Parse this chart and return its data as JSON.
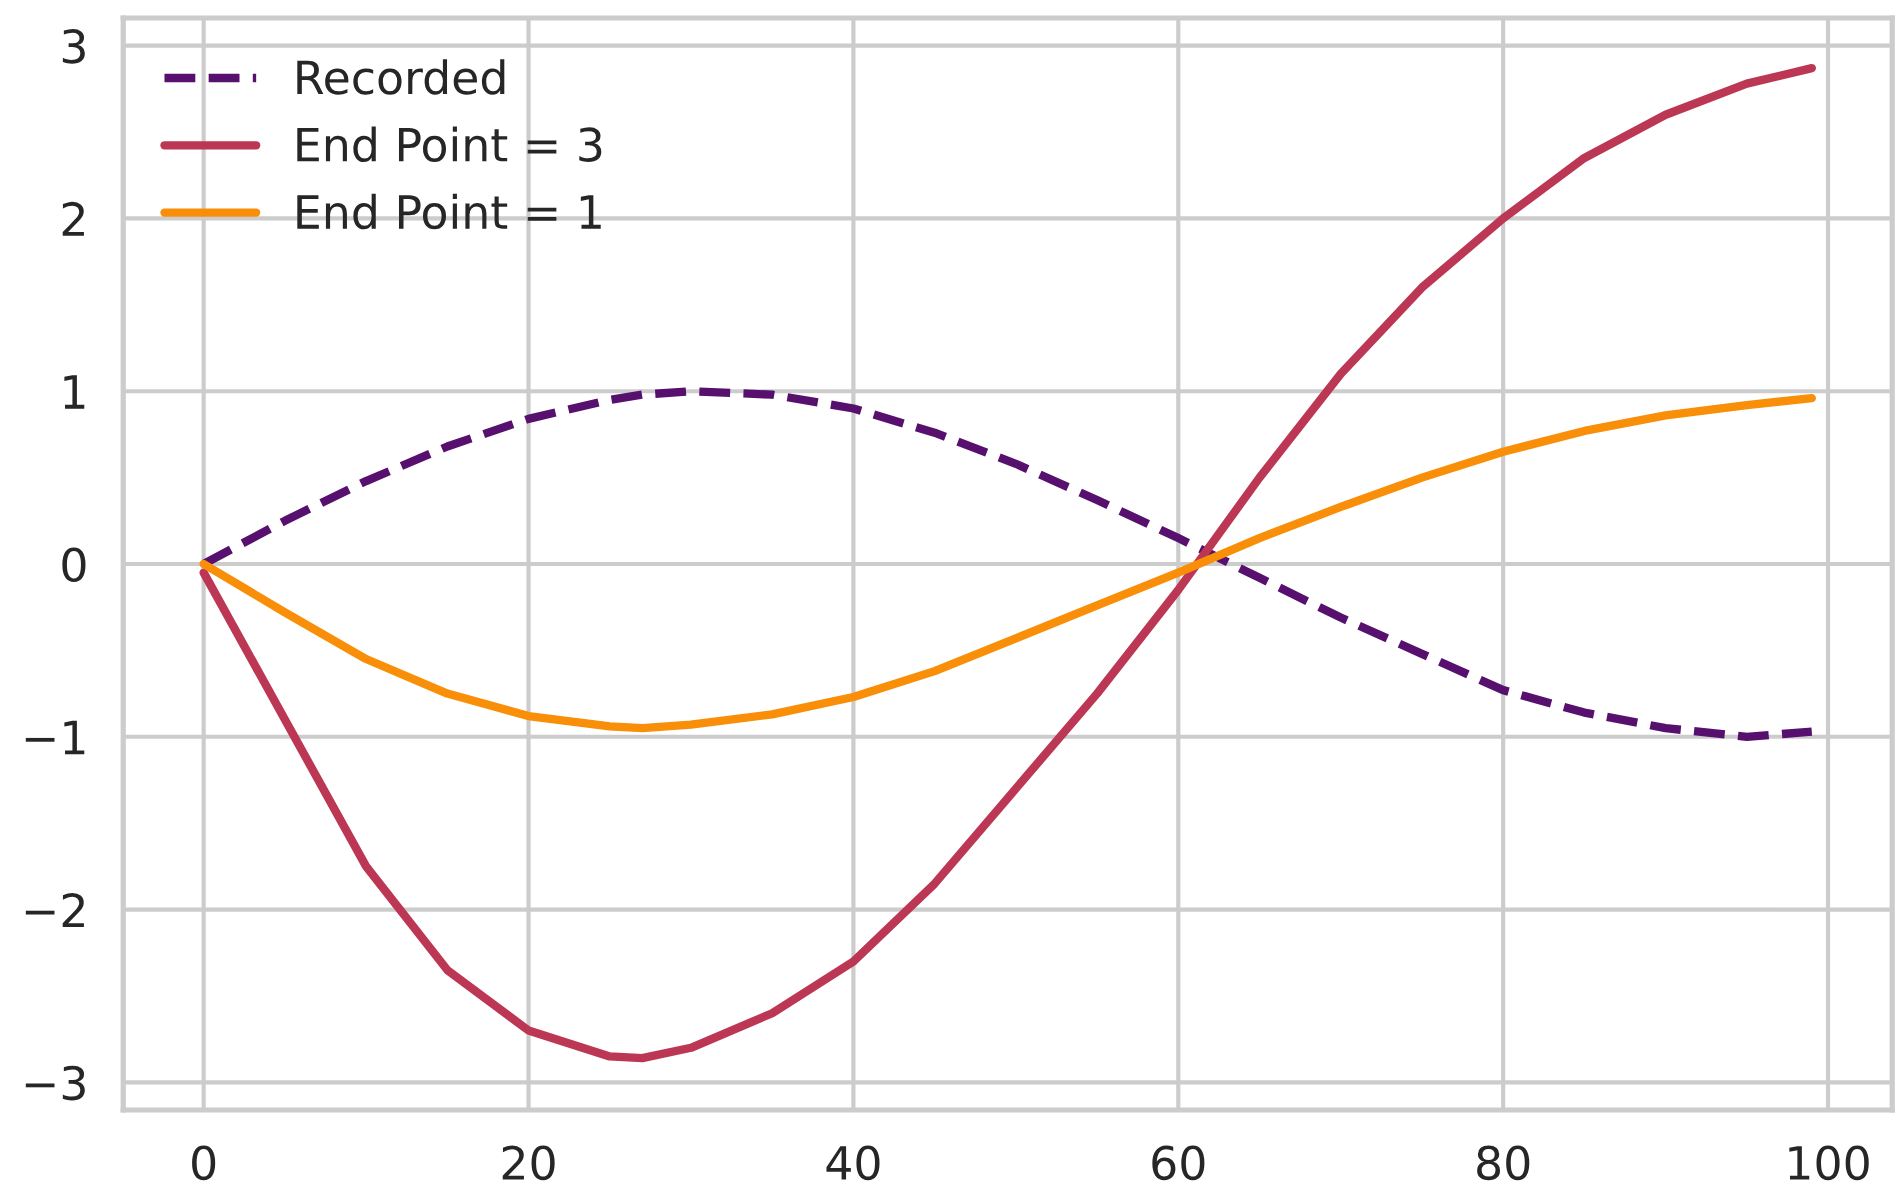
{
  "chart_data": {
    "type": "line",
    "x": [
      0,
      5,
      10,
      15,
      20,
      25,
      27,
      30,
      35,
      40,
      45,
      50,
      55,
      60,
      65,
      70,
      75,
      80,
      85,
      90,
      95,
      99
    ],
    "series": [
      {
        "name": "Recorded",
        "color": "#57106e",
        "line_style": "dashed",
        "values": [
          0,
          0.25,
          0.48,
          0.68,
          0.84,
          0.95,
          0.98,
          1.0,
          0.98,
          0.9,
          0.76,
          0.58,
          0.37,
          0.15,
          -0.08,
          -0.31,
          -0.52,
          -0.73,
          -0.86,
          -0.95,
          -1.0,
          -0.97
        ]
      },
      {
        "name": "End Point = 3",
        "color": "#bc3754",
        "line_style": "solid",
        "values": [
          -0.05,
          -0.9,
          -1.75,
          -2.35,
          -2.7,
          -2.85,
          -2.86,
          -2.8,
          -2.6,
          -2.3,
          -1.85,
          -1.3,
          -0.75,
          -0.15,
          0.5,
          1.1,
          1.6,
          2.0,
          2.35,
          2.6,
          2.78,
          2.87
        ]
      },
      {
        "name": "End Point = 1",
        "color": "#f98e09",
        "line_style": "solid",
        "values": [
          0,
          -0.28,
          -0.55,
          -0.75,
          -0.88,
          -0.94,
          -0.95,
          -0.93,
          -0.87,
          -0.77,
          -0.62,
          -0.43,
          -0.24,
          -0.05,
          0.15,
          0.33,
          0.5,
          0.65,
          0.77,
          0.86,
          0.92,
          0.96
        ]
      }
    ],
    "xlim": [
      -4.95,
      103.95
    ],
    "ylim": [
      -3.16,
      3.16
    ],
    "xticks": [
      0,
      20,
      40,
      60,
      80,
      100
    ],
    "yticks": [
      {
        "value": -3,
        "label": "−3"
      },
      {
        "value": -2,
        "label": "−2"
      },
      {
        "value": -1,
        "label": "−1"
      },
      0,
      1,
      2,
      3
    ],
    "grid": true,
    "legend": "top left"
  }
}
